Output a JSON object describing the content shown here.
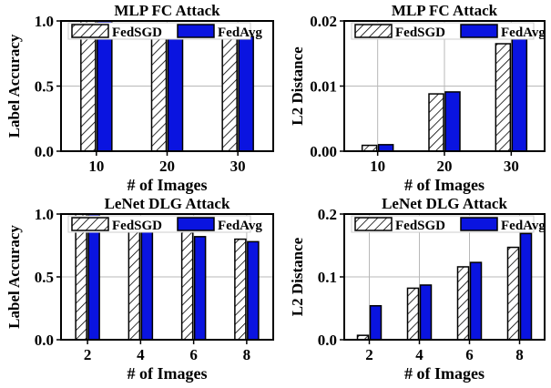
{
  "chart_data": [
    {
      "type": "bar",
      "title": "MLP FC Attack",
      "xlabel": "# of Images",
      "ylabel": "Label Accuracy",
      "categories": [
        "10",
        "20",
        "30"
      ],
      "ylim": [
        0,
        1.0
      ],
      "yticks": [
        "0.0",
        "0.5",
        "1.0"
      ],
      "series": [
        {
          "name": "FedSGD",
          "values": [
            1.0,
            0.95,
            0.88
          ]
        },
        {
          "name": "FedAvg",
          "values": [
            1.0,
            0.955,
            0.88
          ]
        }
      ],
      "legend": "top",
      "grid": true
    },
    {
      "type": "bar",
      "title": "MLP FC Attack",
      "xlabel": "# of Images",
      "ylabel": "L2 Distance",
      "categories": [
        "10",
        "20",
        "30"
      ],
      "ylim": [
        0,
        0.02
      ],
      "yticks": [
        "0.00",
        "0.01",
        "0.02"
      ],
      "series": [
        {
          "name": "FedSGD",
          "values": [
            0.0009,
            0.0088,
            0.0165
          ]
        },
        {
          "name": "FedAvg",
          "values": [
            0.001,
            0.0091,
            0.0175
          ]
        }
      ],
      "legend": "top",
      "grid": true
    },
    {
      "type": "bar",
      "title": "LeNet DLG Attack",
      "xlabel": "# of Images",
      "ylabel": "Label Accuracy",
      "categories": [
        "2",
        "4",
        "6",
        "8"
      ],
      "ylim": [
        0,
        1.0
      ],
      "yticks": [
        "0.0",
        "0.5",
        "1.0"
      ],
      "series": [
        {
          "name": "FedSGD",
          "values": [
            1.0,
            0.95,
            0.9,
            0.8
          ]
        },
        {
          "name": "FedAvg",
          "values": [
            1.0,
            0.9,
            0.82,
            0.78
          ]
        }
      ],
      "legend": "top",
      "grid": true
    },
    {
      "type": "bar",
      "title": "LeNet DLG Attack",
      "xlabel": "# of Images",
      "ylabel": "L2 Distance",
      "categories": [
        "2",
        "4",
        "6",
        "8"
      ],
      "ylim": [
        0,
        0.2
      ],
      "yticks": [
        "0.0",
        "0.1",
        "0.2"
      ],
      "series": [
        {
          "name": "FedSGD",
          "values": [
            0.007,
            0.082,
            0.116,
            0.147
          ]
        },
        {
          "name": "FedAvg",
          "values": [
            0.054,
            0.087,
            0.123,
            0.169
          ]
        }
      ],
      "legend": "top",
      "grid": true
    }
  ],
  "colors": {
    "fedsgd_fill": "#ffffff",
    "fedavg_fill": "#0a14e0",
    "grid": "#b8b8b8",
    "axis": "#000000"
  }
}
